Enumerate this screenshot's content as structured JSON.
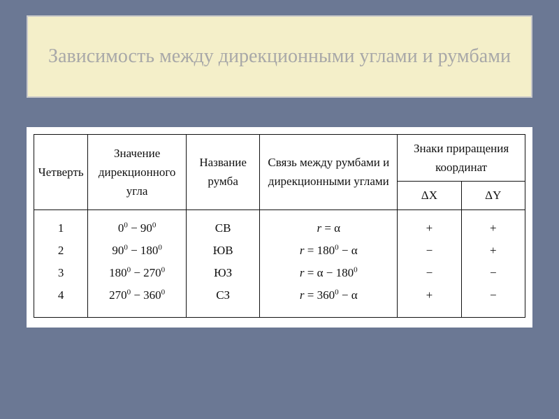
{
  "title": "Зависимость между дирекционными углами и румбами",
  "columns": {
    "quarter": "Четверть",
    "angle_range": "Значение дирекционного угла",
    "rhumb_name": "Название румба",
    "relation": "Связь между румбами и дирекционными углами",
    "signs_header": "Знаки приращения координат",
    "dx": "ΔX",
    "dy": "ΔY"
  },
  "col_widths": {
    "quarter": "11%",
    "angle_range": "20%",
    "rhumb_name": "15%",
    "relation": "28%",
    "dx": "13%",
    "dy": "13%"
  },
  "rows": {
    "quarter": [
      "1",
      "2",
      "3",
      "4"
    ],
    "angle_range_html": [
      "0<sup>0</sup> − 90<sup>0</sup>",
      "90<sup>0</sup> − 180<sup>0</sup>",
      "180<sup>0</sup> − 270<sup>0</sup>",
      "270<sup>0</sup> − 360<sup>0</sup>"
    ],
    "rhumb_name": [
      "СВ",
      "ЮВ",
      "ЮЗ",
      "СЗ"
    ],
    "relation_html": [
      "<i>r</i> = α",
      "<i>r</i> = 180<sup>0</sup> − α",
      "<i>r</i> = α − 180<sup>0</sup>",
      "<i>r</i> = 360<sup>0</sup> − α"
    ],
    "dx": [
      "+",
      "−",
      "−",
      "+"
    ],
    "dy": [
      "+",
      "+",
      "−",
      "−"
    ]
  },
  "style": {
    "background": "#6b7894",
    "title_bg": "#f4efc9",
    "title_color": "#a8a8a8",
    "border_color": "#111111",
    "font_family": "Times New Roman"
  }
}
